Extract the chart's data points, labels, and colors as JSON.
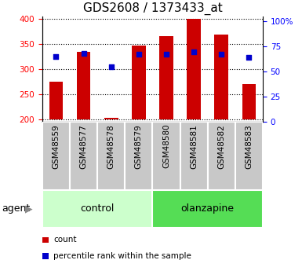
{
  "title": "GDS2608 / 1373433_at",
  "samples": [
    "GSM48559",
    "GSM48577",
    "GSM48578",
    "GSM48579",
    "GSM48580",
    "GSM48581",
    "GSM48582",
    "GSM48583"
  ],
  "groups": [
    "control",
    "control",
    "control",
    "control",
    "olanzapine",
    "olanzapine",
    "olanzapine",
    "olanzapine"
  ],
  "counts": [
    275,
    335,
    203,
    347,
    365,
    400,
    368,
    270
  ],
  "percentiles": [
    65,
    68,
    55,
    67,
    67,
    70,
    67,
    64
  ],
  "ylim_left": [
    195,
    405
  ],
  "ylim_right": [
    0,
    105
  ],
  "yticks_left": [
    200,
    250,
    300,
    350,
    400
  ],
  "yticks_right": [
    0,
    25,
    50,
    75,
    100
  ],
  "bar_color": "#cc0000",
  "dot_color": "#0000cc",
  "bar_bottom": 200,
  "group_colors": {
    "control": "#ccffcc",
    "olanzapine": "#55dd55"
  },
  "gray_box_color": "#c8c8c8",
  "legend_items": [
    {
      "label": "count",
      "color": "#cc0000"
    },
    {
      "label": "percentile rank within the sample",
      "color": "#0000cc"
    }
  ],
  "agent_label": "agent",
  "title_fontsize": 11,
  "tick_fontsize": 7.5,
  "label_fontsize": 9,
  "sample_fontsize": 7.5
}
